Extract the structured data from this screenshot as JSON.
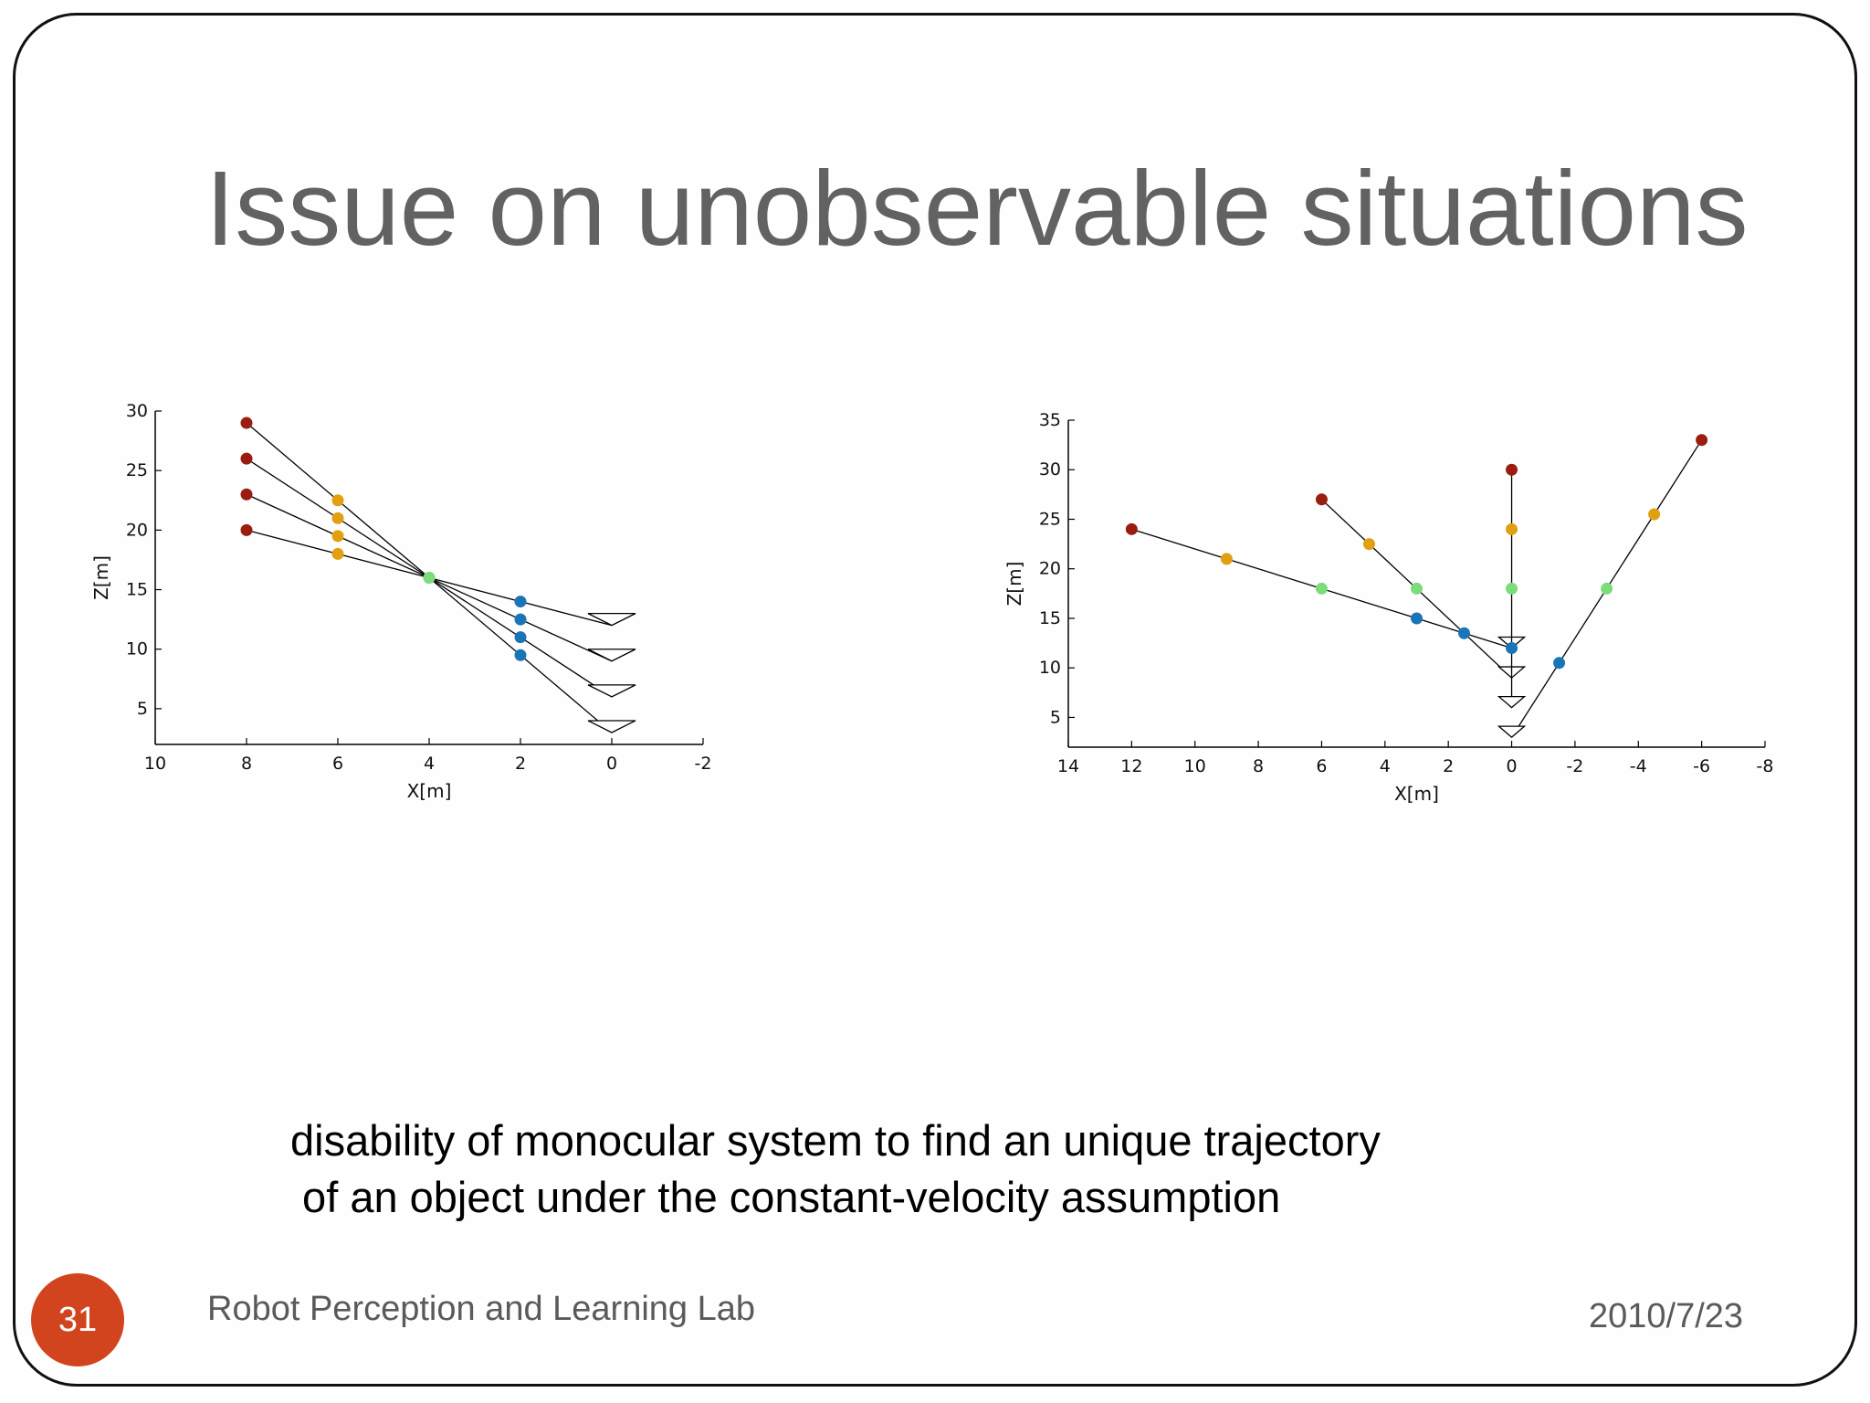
{
  "slide": {
    "title": "Issue on unobservable situations",
    "caption_lines": [
      "disability of monocular system to find an unique trajectory",
      " of an object under the constant-velocity assumption"
    ],
    "slide_number": "31",
    "footer_lab": "Robot Perception and Learning Lab",
    "footer_date": "2010/7/23"
  },
  "colors": {
    "red": "#9b1c10",
    "orange": "#e0a010",
    "green": "#7cdc7c",
    "blue": "#1a74b8",
    "line": "#000000",
    "badge": "#d2441e"
  },
  "chart_data": [
    {
      "type": "scatter",
      "title": "",
      "xlabel": "X[m]",
      "ylabel": "Z[m]",
      "xlim": [
        10,
        -2
      ],
      "ylim": [
        2,
        30
      ],
      "xticks": [
        10,
        8,
        6,
        4,
        2,
        0,
        -2
      ],
      "yticks": [
        5,
        10,
        15,
        20,
        25,
        30
      ],
      "grid": false,
      "camera_marker": "triangle",
      "trajectories": [
        {
          "points": [
            {
              "x": 8,
              "z": 29,
              "color": "red"
            },
            {
              "x": 6,
              "z": 22.5,
              "color": "orange"
            },
            {
              "x": 4,
              "z": 16,
              "color": "green"
            },
            {
              "x": 2,
              "z": 9.5,
              "color": "blue"
            }
          ],
          "camera": {
            "x": 0,
            "z": 3
          }
        },
        {
          "points": [
            {
              "x": 8,
              "z": 26,
              "color": "red"
            },
            {
              "x": 6,
              "z": 21,
              "color": "orange"
            },
            {
              "x": 4,
              "z": 16,
              "color": "green"
            },
            {
              "x": 2,
              "z": 11,
              "color": "blue"
            }
          ],
          "camera": {
            "x": 0,
            "z": 6
          }
        },
        {
          "points": [
            {
              "x": 8,
              "z": 23,
              "color": "red"
            },
            {
              "x": 6,
              "z": 19.5,
              "color": "orange"
            },
            {
              "x": 4,
              "z": 16,
              "color": "green"
            },
            {
              "x": 2,
              "z": 12.5,
              "color": "blue"
            }
          ],
          "camera": {
            "x": 0,
            "z": 9
          }
        },
        {
          "points": [
            {
              "x": 8,
              "z": 20,
              "color": "red"
            },
            {
              "x": 6,
              "z": 18,
              "color": "orange"
            },
            {
              "x": 4,
              "z": 16,
              "color": "green"
            },
            {
              "x": 2,
              "z": 14,
              "color": "blue"
            }
          ],
          "camera": {
            "x": 0,
            "z": 12
          }
        }
      ]
    },
    {
      "type": "scatter",
      "title": "",
      "xlabel": "X[m]",
      "ylabel": "Z[m]",
      "xlim": [
        14,
        -8
      ],
      "ylim": [
        2,
        35
      ],
      "xticks": [
        14,
        12,
        10,
        8,
        6,
        4,
        2,
        0,
        -2,
        -4,
        -6,
        -8
      ],
      "yticks": [
        5,
        10,
        15,
        20,
        25,
        30,
        35
      ],
      "grid": false,
      "camera_marker": "triangle",
      "trajectories": [
        {
          "points": [
            {
              "x": 12,
              "z": 24,
              "color": "red"
            },
            {
              "x": 9,
              "z": 21,
              "color": "orange"
            },
            {
              "x": 6,
              "z": 18,
              "color": "green"
            },
            {
              "x": 3,
              "z": 15,
              "color": "blue"
            }
          ],
          "camera": {
            "x": 0,
            "z": 12
          }
        },
        {
          "points": [
            {
              "x": 6,
              "z": 27,
              "color": "red"
            },
            {
              "x": 4.5,
              "z": 22.5,
              "color": "orange"
            },
            {
              "x": 3,
              "z": 18,
              "color": "green"
            },
            {
              "x": 1.5,
              "z": 13.5,
              "color": "blue"
            }
          ],
          "camera": {
            "x": 0,
            "z": 9
          }
        },
        {
          "points": [
            {
              "x": 0,
              "z": 30,
              "color": "red"
            },
            {
              "x": 0,
              "z": 24,
              "color": "orange"
            },
            {
              "x": 0,
              "z": 18,
              "color": "green"
            },
            {
              "x": 0,
              "z": 12,
              "color": "blue"
            }
          ],
          "camera": {
            "x": 0,
            "z": 6
          }
        },
        {
          "points": [
            {
              "x": -6,
              "z": 33,
              "color": "red"
            },
            {
              "x": -4.5,
              "z": 25.5,
              "color": "orange"
            },
            {
              "x": -3,
              "z": 18,
              "color": "green"
            },
            {
              "x": -1.5,
              "z": 10.5,
              "color": "blue"
            }
          ],
          "camera": {
            "x": 0,
            "z": 3
          }
        }
      ]
    }
  ]
}
